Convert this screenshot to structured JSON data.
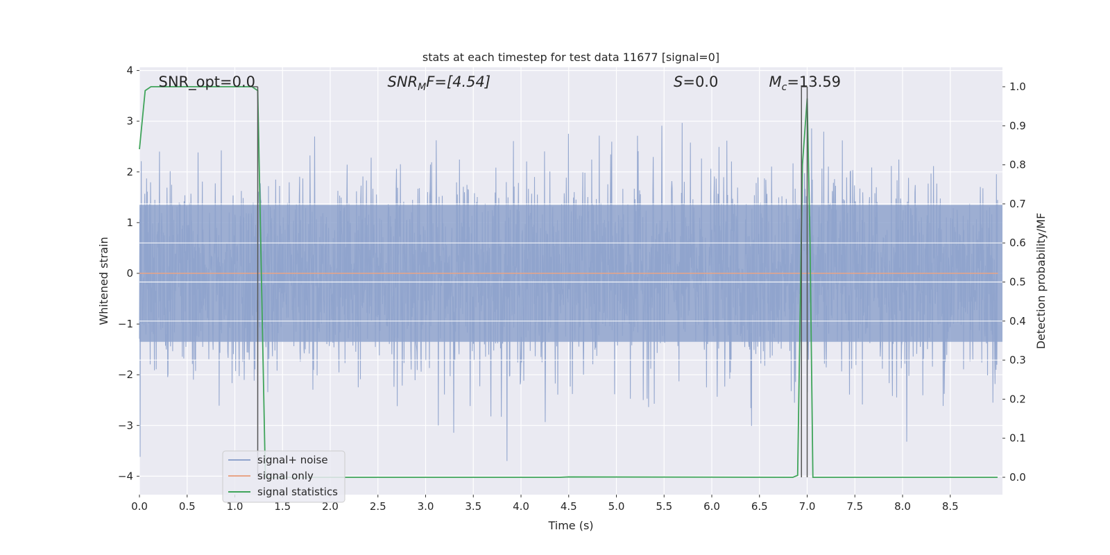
{
  "chart_data": {
    "type": "line",
    "title": "stats at each timestep for test data 11677 [signal=0]",
    "xlabel": "Time (s)",
    "ylabel": "Whitened strain",
    "ylabel_right": "Detection probability/MF",
    "xlim": [
      0.0,
      9.0
    ],
    "ylim": [
      -4.4,
      4.1
    ],
    "ylim_right": [
      -0.045,
      1.04
    ],
    "x_ticks": [
      0.0,
      0.5,
      1.0,
      1.5,
      2.0,
      2.5,
      3.0,
      3.5,
      4.0,
      4.5,
      5.0,
      5.5,
      6.0,
      6.5,
      7.0,
      7.5,
      8.0,
      8.5
    ],
    "x_tick_labels": [
      "0.0",
      "0.5",
      "1.0",
      "1.5",
      "2.0",
      "2.5",
      "3.0",
      "3.5",
      "4.0",
      "4.5",
      "5.0",
      "5.5",
      "6.0",
      "6.5",
      "7.0",
      "7.5",
      "8.0",
      "8.5"
    ],
    "y_ticks": [
      -4,
      -3,
      -2,
      -1,
      0,
      1,
      2,
      3,
      4
    ],
    "y_tick_labels": [
      "−4",
      "−3",
      "−2",
      "−1",
      "0",
      "1",
      "2",
      "3",
      "4"
    ],
    "y_right_ticks": [
      0.0,
      0.1,
      0.2,
      0.3,
      0.4,
      0.5,
      0.6,
      0.7,
      0.8,
      0.9,
      1.0
    ],
    "y_right_tick_labels": [
      "0.0",
      "0.1",
      "0.2",
      "0.3",
      "0.4",
      "0.5",
      "0.6",
      "0.7",
      "0.8",
      "0.9",
      "1.0"
    ],
    "grid": true,
    "legend_position": "lower-left",
    "annotations": [
      {
        "text": "SNR_opt=0.0",
        "x": 0.2
      },
      {
        "text": "SNR",
        "sub": "M",
        "suffix": "F=[4.54]",
        "x": 2.6
      },
      {
        "text": "S",
        "suffix": "=0.0",
        "x": 5.6
      },
      {
        "text": "M",
        "sub": "c",
        "suffix": "=13.59",
        "x": 6.6
      }
    ],
    "vertical_lines_right": [
      {
        "x": 1.24,
        "y": [
          0.0,
          1.0
        ]
      },
      {
        "x": 6.94,
        "y": [
          0.0,
          1.0
        ]
      },
      {
        "x": 7.0,
        "y": [
          0.0,
          1.0
        ]
      }
    ],
    "series": [
      {
        "name": "signal+ noise",
        "axis": "left",
        "color": "#8fa3cc",
        "description": "noise band",
        "band_sigma": 1.0
      },
      {
        "name": "signal only",
        "axis": "left",
        "color": "#e8a486",
        "x": [
          0.0,
          9.0
        ],
        "y": [
          0.0,
          0.0
        ]
      },
      {
        "name": "signal statistics",
        "axis": "right",
        "color": "#3fa45a",
        "x": [
          0.0,
          0.06,
          0.12,
          0.2,
          1.18,
          1.24,
          1.32,
          1.38,
          1.5,
          4.4,
          4.5,
          6.85,
          6.9,
          6.95,
          7.0,
          7.03,
          7.06,
          7.5,
          9.0
        ],
        "y": [
          0.84,
          0.99,
          1.0,
          1.0,
          1.0,
          0.99,
          0.0,
          0.0,
          0.0,
          0.0,
          0.001,
          0.0,
          0.005,
          0.8,
          0.97,
          0.6,
          0.0,
          0.0,
          0.0
        ]
      }
    ]
  }
}
